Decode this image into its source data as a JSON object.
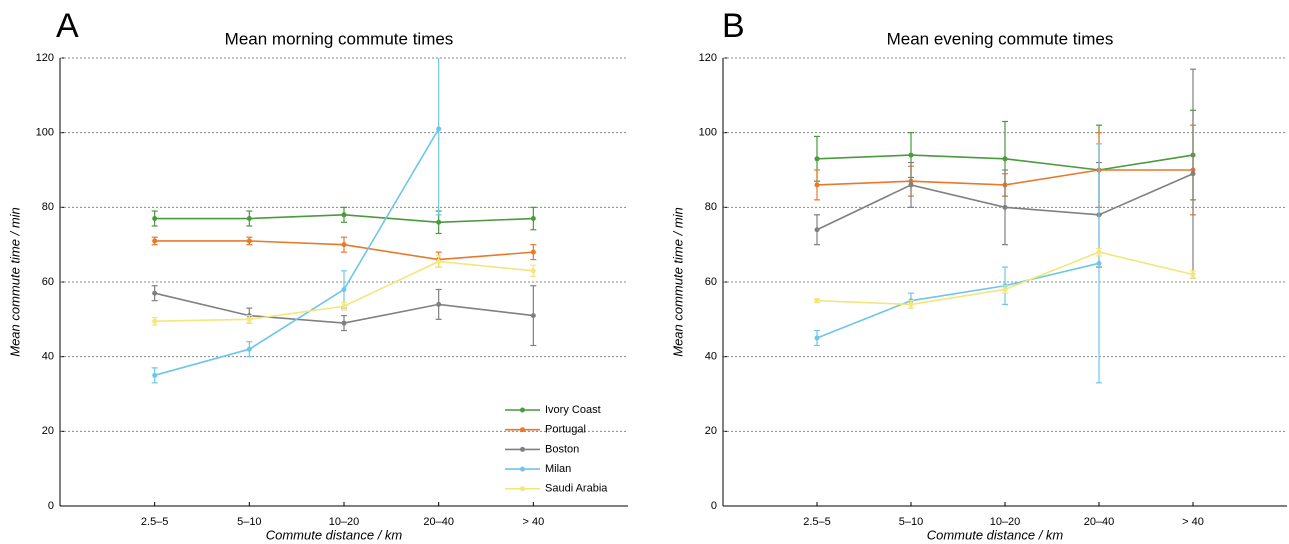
{
  "chart_data": [
    {
      "type": "line",
      "panel_label": "A",
      "title": "Mean morning commute times",
      "x_label": "Commute distance / km",
      "y_label": "Mean commute time / min",
      "categories": [
        "2.5–5",
        "5–10",
        "10–20",
        "20–40",
        "> 40"
      ],
      "ylim": [
        0,
        120
      ],
      "yticks": [
        0,
        20,
        40,
        60,
        80,
        100,
        120
      ],
      "grid": true,
      "legend": "lower right",
      "series": [
        {
          "name": "Ivory Coast",
          "color": "#4a9a3e",
          "values": [
            77,
            77,
            78,
            76,
            77
          ],
          "errors": [
            2,
            2,
            2,
            3,
            3
          ]
        },
        {
          "name": "Portugal",
          "color": "#e8792a",
          "values": [
            71,
            71,
            70,
            66,
            68
          ],
          "errors": [
            1,
            1,
            2,
            2,
            2
          ]
        },
        {
          "name": "Boston",
          "color": "#808080",
          "values": [
            57,
            51,
            49,
            54,
            51
          ],
          "errors": [
            2,
            2,
            2,
            4,
            8
          ]
        },
        {
          "name": "Milan",
          "color": "#6ec6e8",
          "values": [
            35,
            42,
            58,
            101,
            null
          ],
          "errors": [
            2,
            2,
            5,
            23,
            null
          ]
        },
        {
          "name": "Saudi Arabia",
          "color": "#f3e67a",
          "values": [
            49.5,
            50,
            53.5,
            65.5,
            63
          ],
          "errors": [
            1,
            1,
            1,
            1.5,
            1.5
          ]
        }
      ]
    },
    {
      "type": "line",
      "panel_label": "B",
      "title": "Mean evening commute times",
      "x_label": "Commute distance / km",
      "y_label": "Mean commute time / min",
      "categories": [
        "2.5–5",
        "5–10",
        "10–20",
        "20–40",
        "> 40"
      ],
      "ylim": [
        0,
        120
      ],
      "yticks": [
        0,
        20,
        40,
        60,
        80,
        100,
        120
      ],
      "grid": true,
      "series": [
        {
          "color": "#4a9a3e",
          "values": [
            93,
            94,
            93,
            90,
            94
          ],
          "errors": [
            6,
            6,
            10,
            12,
            12
          ]
        },
        {
          "color": "#e8792a",
          "values": [
            86,
            87,
            86,
            90,
            90
          ],
          "errors": [
            4,
            4,
            3,
            10,
            12
          ]
        },
        {
          "color": "#808080",
          "values": [
            74,
            86,
            80,
            78,
            89
          ],
          "errors": [
            4,
            6,
            10,
            14,
            28
          ]
        },
        {
          "color": "#6ec6e8",
          "values": [
            45,
            55,
            59,
            65,
            null
          ],
          "errors": [
            2,
            2,
            5,
            32,
            null
          ]
        },
        {
          "color": "#f3e67a",
          "values": [
            55,
            54,
            58,
            68,
            62
          ],
          "errors": [
            0.5,
            1,
            1,
            1,
            1
          ]
        }
      ]
    }
  ]
}
